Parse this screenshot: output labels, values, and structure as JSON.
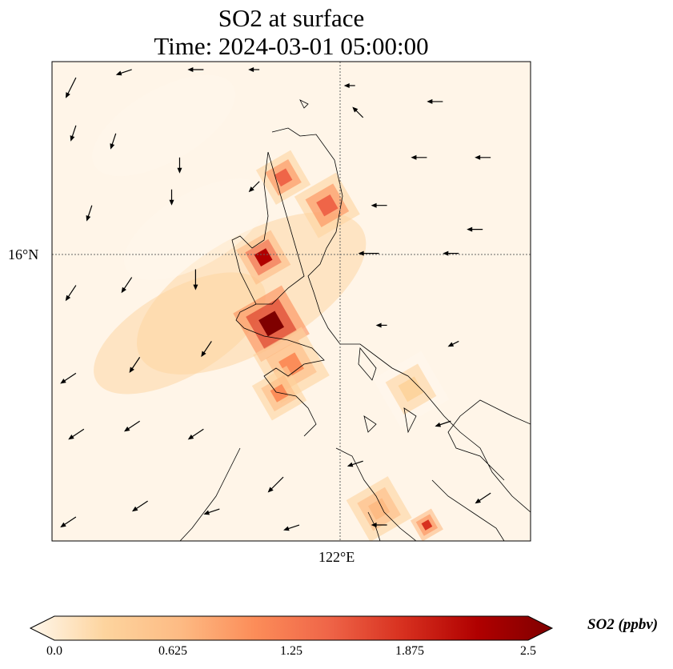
{
  "title": {
    "line1": "SO2 at surface",
    "line2": "Time: 2024-03-01 05:00:00"
  },
  "chart_data": {
    "type": "heatmap",
    "title": "SO2 at surface / Time: 2024-03-01 05:00:00",
    "extent": {
      "lon": [
        118.4,
        124.4
      ],
      "lat": [
        12.4,
        18.4
      ]
    },
    "xticks": [
      {
        "value": 122,
        "label": "122°E"
      }
    ],
    "yticks": [
      {
        "value": 16,
        "label": "16°N"
      }
    ],
    "gridlines": "dotted",
    "colorbar": {
      "label": "SO2 (ppbv)",
      "min": 0,
      "max": 2.5,
      "ticks": [
        "0.0",
        "0.625",
        "1.25",
        "1.875",
        "2.5"
      ],
      "extend": "both",
      "colors": [
        "#fff7ec",
        "#fdd49e",
        "#fdbb84",
        "#fc8d59",
        "#ef6548",
        "#d7301f",
        "#b00000",
        "#7f0000"
      ],
      "placement": "bottom"
    },
    "hotspots": [
      {
        "lon": 121.15,
        "lat": 15.12,
        "value": 2.6,
        "r": 0.35
      },
      {
        "lon": 121.05,
        "lat": 15.95,
        "value": 2.1,
        "r": 0.25
      },
      {
        "lon": 121.3,
        "lat": 16.95,
        "value": 1.5,
        "r": 0.25
      },
      {
        "lon": 121.85,
        "lat": 16.6,
        "value": 1.4,
        "r": 0.3
      },
      {
        "lon": 121.4,
        "lat": 14.6,
        "value": 1.0,
        "r": 0.35
      },
      {
        "lon": 121.25,
        "lat": 14.25,
        "value": 0.9,
        "r": 0.25
      },
      {
        "lon": 123.1,
        "lat": 12.6,
        "value": 1.6,
        "r": 0.15
      },
      {
        "lon": 122.5,
        "lat": 12.8,
        "value": 0.8,
        "r": 0.3
      },
      {
        "lon": 122.9,
        "lat": 14.3,
        "value": 0.5,
        "r": 0.35
      }
    ],
    "wind_vectors": [
      [
        118.7,
        18.2,
        -0.2,
        -0.4
      ],
      [
        119.4,
        18.3,
        -0.3,
        -0.1
      ],
      [
        120.3,
        18.3,
        -0.3,
        0
      ],
      [
        121.0,
        18.3,
        -0.2,
        0
      ],
      [
        122.2,
        18.1,
        -0.2,
        0
      ],
      [
        123.3,
        17.9,
        -0.3,
        0
      ],
      [
        118.7,
        17.6,
        -0.1,
        -0.3
      ],
      [
        119.2,
        17.5,
        -0.1,
        -0.3
      ],
      [
        120.0,
        17.2,
        0,
        -0.3
      ],
      [
        122.3,
        17.7,
        -0.2,
        0.2
      ],
      [
        123.1,
        17.2,
        -0.3,
        0
      ],
      [
        123.9,
        17.2,
        -0.3,
        0
      ],
      [
        118.9,
        16.6,
        -0.1,
        -0.3
      ],
      [
        119.9,
        16.8,
        0,
        -0.3
      ],
      [
        121.0,
        16.9,
        -0.2,
        -0.2
      ],
      [
        122.6,
        16.6,
        -0.3,
        0
      ],
      [
        123.8,
        16.3,
        -0.3,
        0
      ],
      [
        118.7,
        15.6,
        -0.2,
        -0.3
      ],
      [
        119.4,
        15.7,
        -0.2,
        -0.3
      ],
      [
        120.2,
        15.8,
        0,
        -0.4
      ],
      [
        122.5,
        16.0,
        -0.4,
        0
      ],
      [
        123.5,
        16.0,
        -0.3,
        0
      ],
      [
        118.7,
        14.5,
        -0.3,
        -0.2
      ],
      [
        119.5,
        14.7,
        -0.2,
        -0.3
      ],
      [
        120.4,
        14.9,
        -0.2,
        -0.3
      ],
      [
        122.6,
        15.1,
        -0.2,
        0
      ],
      [
        123.5,
        14.9,
        -0.2,
        -0.1
      ],
      [
        118.8,
        13.8,
        -0.3,
        -0.2
      ],
      [
        119.5,
        13.9,
        -0.3,
        -0.2
      ],
      [
        120.3,
        13.8,
        -0.3,
        -0.2
      ],
      [
        121.3,
        13.2,
        -0.3,
        -0.3
      ],
      [
        122.3,
        13.4,
        -0.3,
        -0.1
      ],
      [
        123.4,
        13.9,
        -0.3,
        -0.1
      ],
      [
        118.7,
        12.7,
        -0.3,
        -0.2
      ],
      [
        119.6,
        12.9,
        -0.3,
        -0.2
      ],
      [
        120.5,
        12.8,
        -0.3,
        -0.1
      ],
      [
        121.5,
        12.6,
        -0.3,
        -0.1
      ],
      [
        122.6,
        12.6,
        -0.3,
        0
      ],
      [
        123.9,
        13.0,
        -0.3,
        -0.2
      ]
    ]
  }
}
